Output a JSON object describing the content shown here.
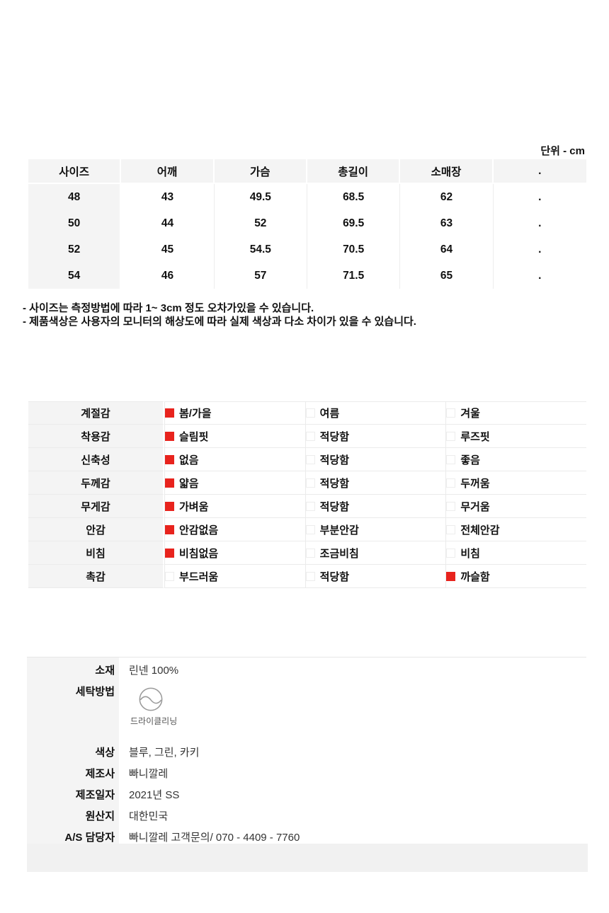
{
  "unit_label": "단위 - cm",
  "size_table": {
    "headers": [
      "사이즈",
      "어깨",
      "가슴",
      "총길이",
      "소매장",
      "."
    ],
    "rows": [
      [
        "48",
        "43",
        "49.5",
        "68.5",
        "62",
        "."
      ],
      [
        "50",
        "44",
        "52",
        "69.5",
        "63",
        "."
      ],
      [
        "52",
        "45",
        "54.5",
        "70.5",
        "64",
        "."
      ],
      [
        "54",
        "46",
        "57",
        "71.5",
        "65",
        "."
      ]
    ]
  },
  "notes": [
    "- 사이즈는 측정방법에 따라 1~ 3cm 정도 오차가있을 수 있습니다.",
    "- 제품색상은 사용자의 모니터의 해상도에 따라 실제 색상과 다소 차이가 있을 수 있습니다."
  ],
  "attributes": {
    "rows": [
      {
        "label": "계절감",
        "options": [
          {
            "text": "봄/가을",
            "checked": true
          },
          {
            "text": "여름",
            "checked": false
          },
          {
            "text": "겨울",
            "checked": false
          }
        ]
      },
      {
        "label": "착용감",
        "options": [
          {
            "text": "슬림핏",
            "checked": true
          },
          {
            "text": "적당함",
            "checked": false
          },
          {
            "text": "루즈핏",
            "checked": false
          }
        ]
      },
      {
        "label": "신축성",
        "options": [
          {
            "text": "없음",
            "checked": true
          },
          {
            "text": "적당함",
            "checked": false
          },
          {
            "text": "좋음",
            "checked": false
          }
        ]
      },
      {
        "label": "두께감",
        "options": [
          {
            "text": "얇음",
            "checked": true
          },
          {
            "text": "적당함",
            "checked": false
          },
          {
            "text": "두꺼움",
            "checked": false
          }
        ]
      },
      {
        "label": "무게감",
        "options": [
          {
            "text": "가벼움",
            "checked": true
          },
          {
            "text": "적당함",
            "checked": false
          },
          {
            "text": "무거움",
            "checked": false
          }
        ]
      },
      {
        "label": "안감",
        "options": [
          {
            "text": "안감없음",
            "checked": true
          },
          {
            "text": "부분안감",
            "checked": false
          },
          {
            "text": "전체안감",
            "checked": false
          }
        ]
      },
      {
        "label": "비침",
        "options": [
          {
            "text": "비침없음",
            "checked": true
          },
          {
            "text": "조금비침",
            "checked": false
          },
          {
            "text": "비침",
            "checked": false
          }
        ]
      },
      {
        "label": "촉감",
        "options": [
          {
            "text": "부드러움",
            "checked": false
          },
          {
            "text": "적당함",
            "checked": false
          },
          {
            "text": "까슬함",
            "checked": true
          }
        ]
      }
    ]
  },
  "info": {
    "rows": [
      {
        "label": "소재",
        "value": "린넨 100%"
      },
      {
        "label": "세탁방법",
        "value": "",
        "icon": "dry-cleaning-icon",
        "icon_caption": "드라이클리닝"
      },
      {
        "label": "색상",
        "value": "블루, 그린, 카키"
      },
      {
        "label": "제조사",
        "value": "빠니깔레"
      },
      {
        "label": "제조일자",
        "value": "2021년 SS"
      },
      {
        "label": "원산지",
        "value": "대한민국"
      },
      {
        "label": "A/S 담당자",
        "value": "빠니깔레 고객문의/ 070 - 4409 - 7760"
      }
    ]
  },
  "icons": {
    "checked": "red-filled-square",
    "unchecked": "light-outline-square",
    "wash": "dry-cleaning-circle-wave"
  },
  "colors": {
    "accent_red": "#e8231d",
    "cell_bg": "#f4f4f4",
    "border": "#ebebeb",
    "strip_bg": "#f1f1f1"
  }
}
